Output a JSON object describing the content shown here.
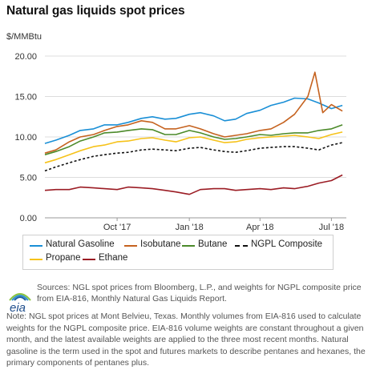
{
  "title": "Natural gas liquids spot prices",
  "unit_label": "$/MMBtu",
  "legend": {
    "items": [
      {
        "label": "Natural Gasoline",
        "color": "#1a8fd6",
        "dash": "solid"
      },
      {
        "label": "Isobutane",
        "color": "#c5621f",
        "dash": "solid"
      },
      {
        "label": "Butane",
        "color": "#4c8a2a",
        "dash": "solid"
      },
      {
        "label": "NGPL Composite",
        "color": "#111111",
        "dash": "dashed"
      },
      {
        "label": "Propane",
        "color": "#f6c219",
        "dash": "solid"
      },
      {
        "label": "Ethane",
        "color": "#9b1c24",
        "dash": "solid"
      }
    ]
  },
  "sources": "Sources: NGL spot prices from Bloomberg, L.P., and weights for NGPL composite price from EIA-816, Monthly Natural Gas Liquids Report.",
  "note": "Note: NGL spot prices at Mont Belvieu, Texas. Monthly volumes from EIA-816 used to calculate weights for the NGPL composite price. EIA-816 volume weights are constant throughout a given month, and the latest available weights are applied to the three most recent months. Natural gasoline is the term used in the spot and futures markets to describe pentanes and hexanes, the primary components of pentanes plus.",
  "logo": {
    "text": "eia"
  },
  "chart_data": {
    "type": "line",
    "ylabel": "$/MMBtu",
    "ylim": [
      0,
      20
    ],
    "yticks": [
      0,
      5,
      10,
      15,
      20
    ],
    "ytick_labels": [
      "0.00",
      "5.00",
      "10.00",
      "15.00",
      "20.00"
    ],
    "xlim": [
      "2017-07-01",
      "2018-07-20"
    ],
    "xticks": [
      {
        "date": "2017-10-01",
        "label": "Oct '17"
      },
      {
        "date": "2018-01-01",
        "label": "Jan '18"
      },
      {
        "date": "2018-04-01",
        "label": "Apr '18"
      },
      {
        "date": "2018-07-01",
        "label": "Jul '18"
      }
    ],
    "grid": "horizontal",
    "legend_position": "bottom",
    "series": [
      {
        "name": "Natural Gasoline",
        "color": "#1a8fd6",
        "dash": "solid",
        "x": [
          "2017-07-01",
          "2017-07-15",
          "2017-08-01",
          "2017-08-15",
          "2017-09-01",
          "2017-09-15",
          "2017-10-01",
          "2017-10-15",
          "2017-11-01",
          "2017-11-15",
          "2017-12-01",
          "2017-12-15",
          "2018-01-01",
          "2018-01-15",
          "2018-02-01",
          "2018-02-15",
          "2018-03-01",
          "2018-03-15",
          "2018-04-01",
          "2018-04-15",
          "2018-05-01",
          "2018-05-15",
          "2018-06-01",
          "2018-06-15",
          "2018-07-01",
          "2018-07-15"
        ],
        "y": [
          9.2,
          9.6,
          10.2,
          10.8,
          11.0,
          11.5,
          11.5,
          11.8,
          12.3,
          12.5,
          12.2,
          12.3,
          12.8,
          13.0,
          12.6,
          12.0,
          12.2,
          12.9,
          13.3,
          13.9,
          14.3,
          14.8,
          14.7,
          14.2,
          13.5,
          13.9
        ]
      },
      {
        "name": "Isobutane",
        "color": "#c5621f",
        "dash": "solid",
        "x": [
          "2017-07-01",
          "2017-07-15",
          "2017-08-01",
          "2017-08-15",
          "2017-09-01",
          "2017-09-15",
          "2017-10-01",
          "2017-10-15",
          "2017-11-01",
          "2017-11-15",
          "2017-12-01",
          "2017-12-15",
          "2018-01-01",
          "2018-01-15",
          "2018-02-01",
          "2018-02-15",
          "2018-03-01",
          "2018-03-15",
          "2018-04-01",
          "2018-04-15",
          "2018-05-01",
          "2018-05-15",
          "2018-06-01",
          "2018-06-10",
          "2018-06-20",
          "2018-07-01",
          "2018-07-15"
        ],
        "y": [
          8.0,
          8.4,
          9.4,
          10.0,
          10.3,
          10.8,
          11.3,
          11.5,
          12.0,
          11.8,
          11.0,
          11.0,
          11.4,
          11.0,
          10.4,
          10.0,
          10.2,
          10.4,
          10.8,
          11.0,
          11.8,
          12.8,
          15.0,
          18.0,
          13.0,
          14.0,
          13.2
        ]
      },
      {
        "name": "Butane",
        "color": "#4c8a2a",
        "dash": "solid",
        "x": [
          "2017-07-01",
          "2017-07-15",
          "2017-08-01",
          "2017-08-15",
          "2017-09-01",
          "2017-09-15",
          "2017-10-01",
          "2017-10-15",
          "2017-11-01",
          "2017-11-15",
          "2017-12-01",
          "2017-12-15",
          "2018-01-01",
          "2018-01-15",
          "2018-02-01",
          "2018-02-15",
          "2018-03-01",
          "2018-03-15",
          "2018-04-01",
          "2018-04-15",
          "2018-05-01",
          "2018-05-15",
          "2018-06-01",
          "2018-06-15",
          "2018-07-01",
          "2018-07-15"
        ],
        "y": [
          7.8,
          8.2,
          8.8,
          9.5,
          10.0,
          10.5,
          10.6,
          10.8,
          11.0,
          10.9,
          10.3,
          10.3,
          10.8,
          10.5,
          10.0,
          9.7,
          9.8,
          10.0,
          10.3,
          10.2,
          10.4,
          10.5,
          10.5,
          10.8,
          11.0,
          11.5
        ]
      },
      {
        "name": "NGPL Composite",
        "color": "#111111",
        "dash": "dashed",
        "x": [
          "2017-07-01",
          "2017-07-15",
          "2017-08-01",
          "2017-08-15",
          "2017-09-01",
          "2017-09-15",
          "2017-10-01",
          "2017-10-15",
          "2017-11-01",
          "2017-11-15",
          "2017-12-01",
          "2017-12-15",
          "2018-01-01",
          "2018-01-15",
          "2018-02-01",
          "2018-02-15",
          "2018-03-01",
          "2018-03-15",
          "2018-04-01",
          "2018-04-15",
          "2018-05-01",
          "2018-05-15",
          "2018-06-01",
          "2018-06-15",
          "2018-07-01",
          "2018-07-15"
        ],
        "y": [
          5.8,
          6.3,
          6.8,
          7.2,
          7.6,
          7.8,
          8.0,
          8.1,
          8.4,
          8.5,
          8.4,
          8.3,
          8.6,
          8.7,
          8.4,
          8.2,
          8.1,
          8.3,
          8.6,
          8.7,
          8.8,
          8.8,
          8.6,
          8.4,
          9.0,
          9.3
        ]
      },
      {
        "name": "Propane",
        "color": "#f6c219",
        "dash": "solid",
        "x": [
          "2017-07-01",
          "2017-07-15",
          "2017-08-01",
          "2017-08-15",
          "2017-09-01",
          "2017-09-15",
          "2017-10-01",
          "2017-10-15",
          "2017-11-01",
          "2017-11-15",
          "2017-12-01",
          "2017-12-15",
          "2018-01-01",
          "2018-01-15",
          "2018-02-01",
          "2018-02-15",
          "2018-03-01",
          "2018-03-15",
          "2018-04-01",
          "2018-04-15",
          "2018-05-01",
          "2018-05-15",
          "2018-06-01",
          "2018-06-15",
          "2018-07-01",
          "2018-07-15"
        ],
        "y": [
          6.8,
          7.2,
          7.8,
          8.3,
          8.8,
          9.0,
          9.4,
          9.5,
          9.8,
          9.9,
          9.6,
          9.4,
          9.9,
          10.0,
          9.6,
          9.3,
          9.4,
          9.7,
          9.9,
          10.0,
          10.1,
          10.2,
          10.0,
          9.8,
          10.3,
          10.6
        ]
      },
      {
        "name": "Ethane",
        "color": "#9b1c24",
        "dash": "solid",
        "x": [
          "2017-07-01",
          "2017-07-15",
          "2017-08-01",
          "2017-08-15",
          "2017-09-01",
          "2017-09-15",
          "2017-10-01",
          "2017-10-15",
          "2017-11-01",
          "2017-11-15",
          "2017-12-01",
          "2017-12-15",
          "2018-01-01",
          "2018-01-15",
          "2018-02-01",
          "2018-02-15",
          "2018-03-01",
          "2018-03-15",
          "2018-04-01",
          "2018-04-15",
          "2018-05-01",
          "2018-05-15",
          "2018-06-01",
          "2018-06-15",
          "2018-07-01",
          "2018-07-15"
        ],
        "y": [
          3.4,
          3.5,
          3.5,
          3.8,
          3.7,
          3.6,
          3.5,
          3.8,
          3.7,
          3.6,
          3.4,
          3.2,
          2.9,
          3.5,
          3.6,
          3.6,
          3.4,
          3.5,
          3.6,
          3.5,
          3.7,
          3.6,
          3.9,
          4.3,
          4.6,
          5.3
        ]
      }
    ]
  }
}
